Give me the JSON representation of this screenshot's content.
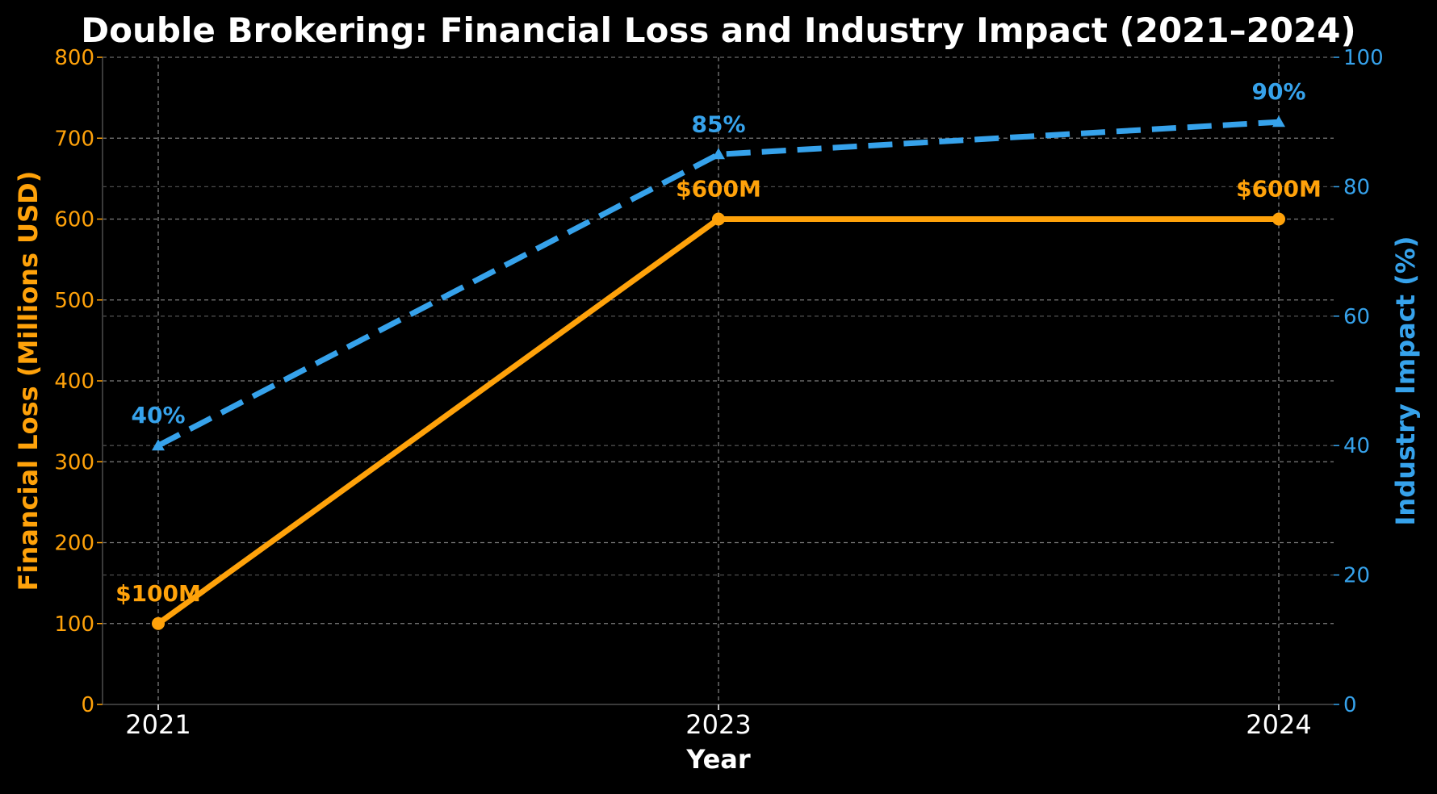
{
  "chart_data": {
    "type": "line",
    "title": "Double Brokering: Financial Loss and Industry Impact (2021–2024)",
    "xlabel": "Year",
    "ylabel_left": "Financial Loss (Millions USD)",
    "ylabel_right": "Industry Impact (%)",
    "categories": [
      "2021",
      "2023",
      "2024"
    ],
    "ylim_left": [
      0,
      800
    ],
    "ylim_right": [
      0,
      100
    ],
    "yticks_left": [
      "0",
      "100",
      "200",
      "300",
      "400",
      "500",
      "600",
      "700",
      "800"
    ],
    "yticks_right": [
      "0",
      "20",
      "40",
      "60",
      "80",
      "100"
    ],
    "grid": true,
    "colors": {
      "background": "#000000",
      "loss": "#ffa20a",
      "impact": "#36a2eb",
      "grid": "#8a8a8a",
      "text": "#ffffff"
    },
    "series": [
      {
        "axis": "left",
        "values": [
          100,
          600,
          600
        ],
        "labels": [
          "$100M",
          "$600M",
          "$600M"
        ],
        "style": "solid",
        "marker": "circle"
      },
      {
        "axis": "right",
        "values": [
          40,
          85,
          90
        ],
        "labels": [
          "40%",
          "85%",
          "90%"
        ],
        "style": "dashed",
        "marker": "triangle"
      }
    ]
  }
}
